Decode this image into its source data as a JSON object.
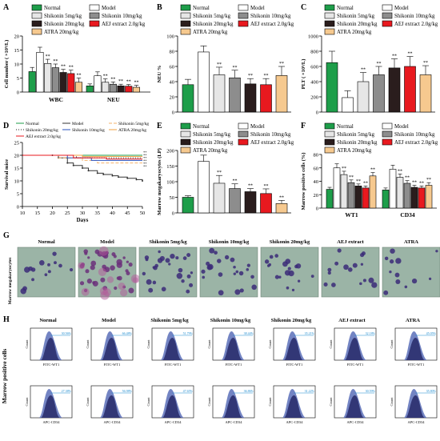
{
  "groups": [
    "Normal",
    "Model",
    "Shikonin 5mg/kg",
    "Shikonin 10mg/kg",
    "Shikonin 20mg/kg",
    "AEJ extract 2.0g/kg",
    "ATRA 20mg/kg"
  ],
  "colors": {
    "normal": "#1e9e4a",
    "model": "#ffffff",
    "shik5": "#e6e6e6",
    "shik10": "#8d8d8d",
    "shik20": "#2a1d1d",
    "aej": "#e8191f",
    "atra": "#f6c98f"
  },
  "panel_labels": {
    "A": "A",
    "B": "B",
    "C": "C",
    "D": "D",
    "E": "E",
    "F": "F",
    "G": "G",
    "H": "H"
  },
  "sig": "**",
  "chart_data": [
    {
      "id": "A",
      "type": "bar",
      "ylabel": "Cell number ( ×10⁹/L)",
      "ylim": [
        0,
        20
      ],
      "yticks": [
        0,
        5,
        10,
        15,
        20
      ],
      "categories": [
        "WBC",
        "NEU"
      ],
      "series": [
        {
          "name": "Normal",
          "values": [
            7.3,
            2.2
          ],
          "err": [
            1.5,
            0.7
          ]
        },
        {
          "name": "Model",
          "values": [
            14.2,
            5.8
          ],
          "err": [
            1.8,
            1.4
          ]
        },
        {
          "name": "Shikonin 5mg/kg",
          "values": [
            10.2,
            3.5
          ],
          "err": [
            1.5,
            1.2
          ]
        },
        {
          "name": "Shikonin 10mg/kg",
          "values": [
            8.7,
            2.8
          ],
          "err": [
            1.3,
            0.8
          ]
        },
        {
          "name": "Shikonin 20mg/kg",
          "values": [
            7.0,
            2.2
          ],
          "err": [
            1.1,
            0.6
          ]
        },
        {
          "name": "AEJ extract 2.0g/kg",
          "values": [
            6.6,
            2.1
          ],
          "err": [
            1.2,
            0.6
          ]
        },
        {
          "name": "ATRA 20mg/kg",
          "values": [
            3.5,
            1.7
          ],
          "err": [
            1.5,
            0.7
          ]
        }
      ],
      "sig": [
        [
          false,
          false,
          true,
          true,
          true,
          true,
          true
        ],
        [
          false,
          false,
          true,
          true,
          true,
          true,
          true
        ]
      ]
    },
    {
      "id": "B",
      "type": "bar",
      "ylabel": "NEU %",
      "ylim": [
        0,
        100
      ],
      "yticks": [
        0,
        20,
        40,
        60,
        80,
        100
      ],
      "values": [
        36,
        79,
        49,
        45,
        37,
        36,
        48
      ],
      "err": [
        7,
        8,
        10,
        10,
        7,
        8,
        12
      ],
      "sig": [
        false,
        false,
        true,
        true,
        true,
        true,
        true
      ]
    },
    {
      "id": "C",
      "type": "bar",
      "ylabel": "PLT ( ×10⁹/L)",
      "ylim": [
        0,
        1000
      ],
      "yticks": [
        0,
        200,
        400,
        600,
        800,
        1000
      ],
      "values": [
        650,
        190,
        400,
        490,
        580,
        600,
        490
      ],
      "err": [
        150,
        90,
        120,
        110,
        120,
        130,
        120
      ],
      "sig": [
        false,
        false,
        true,
        true,
        true,
        true,
        true
      ]
    },
    {
      "id": "D",
      "type": "line",
      "ylabel": "Survival mice",
      "xlabel": "Days",
      "xlim": [
        10,
        50
      ],
      "ylim": [
        0,
        25
      ],
      "xticks": [
        10,
        15,
        20,
        25,
        30,
        35,
        40,
        45,
        50
      ],
      "yticks": [
        0,
        5,
        10,
        15,
        20,
        25
      ],
      "legend": [
        "Normal",
        "Model",
        "Shikonin 5mg/kg",
        "Shikonin 20mg/kg",
        "Shikonin 10mg/kg",
        "ATRA 20mg/kg",
        "AEJ extract 2.0g/kg"
      ],
      "series": [
        {
          "name": "Normal",
          "x": [
            10,
            50
          ],
          "y": [
            20,
            20
          ]
        },
        {
          "name": "Model",
          "x": [
            10,
            20,
            22,
            25,
            27,
            30,
            32,
            35,
            37,
            40,
            42,
            45,
            48,
            50
          ],
          "y": [
            20,
            20,
            19,
            17,
            16,
            15,
            14,
            13,
            12.5,
            12,
            11.5,
            11,
            10.5,
            10
          ]
        },
        {
          "name": "Shikonin 5mg/kg",
          "x": [
            10,
            22,
            30,
            35,
            50
          ],
          "y": [
            20,
            19,
            18,
            17,
            17
          ]
        },
        {
          "name": "Shikonin 20mg/kg",
          "x": [
            10,
            28,
            50
          ],
          "y": [
            20,
            19,
            19
          ]
        },
        {
          "name": "Shikonin 10mg/kg",
          "x": [
            10,
            25,
            33,
            50
          ],
          "y": [
            20,
            19,
            18,
            18
          ]
        },
        {
          "name": "ATRA 20mg/kg",
          "x": [
            10,
            30,
            50
          ],
          "y": [
            20,
            19.5,
            19.5
          ]
        },
        {
          "name": "AEJ extract 2.0g/kg",
          "x": [
            10,
            27,
            38,
            50
          ],
          "y": [
            20,
            19,
            18.5,
            18.5
          ]
        }
      ],
      "sig_count": 6
    },
    {
      "id": "E",
      "type": "bar",
      "ylabel": "Marrow megakaryocytes (LP)",
      "ylim": [
        0,
        200
      ],
      "yticks": [
        0,
        50,
        100,
        150,
        200
      ],
      "values": [
        50,
        165,
        95,
        78,
        68,
        62,
        30
      ],
      "err": [
        5,
        20,
        25,
        15,
        10,
        15,
        10
      ],
      "sig": [
        false,
        false,
        true,
        true,
        true,
        true,
        true
      ]
    },
    {
      "id": "F",
      "type": "bar",
      "ylabel": "Marrow positive cells (%)",
      "ylim": [
        0,
        80
      ],
      "yticks": [
        0,
        20,
        40,
        60,
        80
      ],
      "categories": [
        "WT1",
        "CD34"
      ],
      "series": [
        {
          "name": "Normal",
          "values": [
            28,
            27
          ],
          "err": [
            3,
            3
          ]
        },
        {
          "name": "Model",
          "values": [
            60,
            58
          ],
          "err": [
            6,
            6
          ]
        },
        {
          "name": "Shikonin 5mg/kg",
          "values": [
            50,
            46
          ],
          "err": [
            5,
            5
          ]
        },
        {
          "name": "Shikonin 10mg/kg",
          "values": [
            38,
            37
          ],
          "err": [
            4,
            4
          ]
        },
        {
          "name": "Shikonin 20mg/kg",
          "values": [
            33,
            31
          ],
          "err": [
            3,
            3
          ]
        },
        {
          "name": "AEJ extract 2.0g/kg",
          "values": [
            30,
            30
          ],
          "err": [
            3,
            3
          ]
        },
        {
          "name": "ATRA 20mg/kg",
          "values": [
            48,
            34
          ],
          "err": [
            5,
            4
          ]
        }
      ],
      "sig": [
        [
          false,
          false,
          true,
          true,
          true,
          true,
          true
        ],
        [
          false,
          false,
          true,
          true,
          true,
          true,
          true
        ]
      ]
    }
  ],
  "panel_g": {
    "side_label": "Marrow megakaryocytes",
    "columns": [
      "Normal",
      "Model",
      "Shikonin 5mg/kg",
      "Shikonin 10mg/kg",
      "Shikonin 20mg/kg",
      "AEJ extract",
      "ATRA"
    ]
  },
  "panel_h": {
    "side_label": "Marrow positive cells",
    "columns": [
      "Normal",
      "Model",
      "Shikonin 5mg/kg",
      "Shikonin 10mg/kg",
      "Shikonin 20mg/kg",
      "AEJ extract",
      "ATRA"
    ],
    "y_label": "Count",
    "row_axes": [
      "FITC-WT1",
      "APC-CD34"
    ],
    "wt1_pct": [
      "30.56%",
      "66.48%",
      "51.79%",
      "38.44%",
      "35.21%",
      "32.18%",
      "45.05%"
    ],
    "cd34_pct": [
      "27.38%",
      "56.98%",
      "47.65%",
      "36.86%",
      "31.22%",
      "30.59%",
      "35.80%"
    ]
  }
}
